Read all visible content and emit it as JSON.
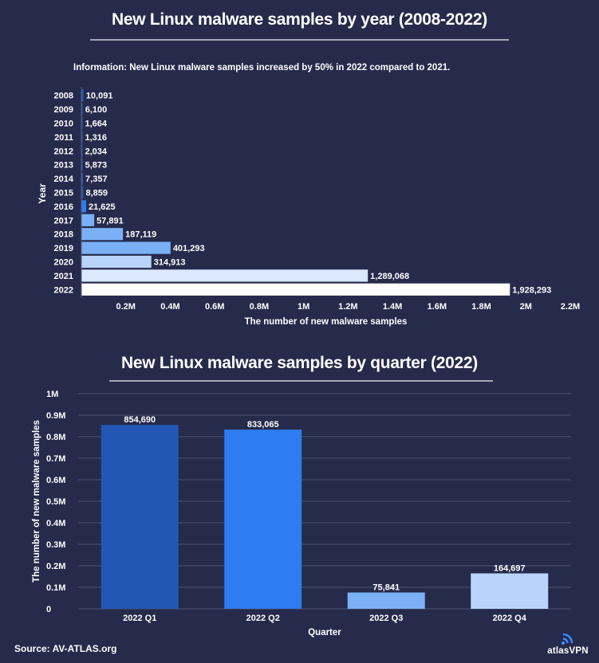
{
  "titles": {
    "chart1": "New Linux malware samples by year (2008-2022)",
    "chart2": "New Linux malware samples by quarter (2022)"
  },
  "info": "Information: New Linux malware samples increased by 50% in  2022 compared to 2021.",
  "source": "Source: AV-ATLAS.org",
  "brand": {
    "name": "atlasVPN",
    "icon": "wifi-signal-icon"
  },
  "colors": {
    "background": "#262a4b",
    "bar_dark": "#2257b5",
    "bar_blue": "#2f7bf0",
    "bar_mid": "#7ab0f6",
    "bar_light": "#b9d4fb",
    "bar_white": "#ffffff",
    "grid": "#4f5472"
  },
  "chart_data": [
    {
      "type": "bar",
      "orientation": "horizontal",
      "title": "New Linux malware samples by year (2008-2022)",
      "xlabel": "The number of new malware samples",
      "ylabel": "Year",
      "categories": [
        "2008",
        "2009",
        "2010",
        "2011",
        "2012",
        "2013",
        "2014",
        "2015",
        "2016",
        "2017",
        "2018",
        "2019",
        "2020",
        "2021",
        "2022"
      ],
      "values": [
        10091,
        6100,
        1664,
        1316,
        2034,
        5873,
        7357,
        8859,
        21625,
        57891,
        187119,
        401293,
        314913,
        1289068,
        1928293
      ],
      "value_labels": [
        "10,091",
        "6,100",
        "1,664",
        "1,316",
        "2,034",
        "5,873",
        "7,357",
        "8,859",
        "21,625",
        "57,891",
        "187,119",
        "401,293",
        "314,913",
        "1,289,068",
        "1,928,293"
      ],
      "bar_colors": [
        "#2257b5",
        "#2257b5",
        "#2257b5",
        "#2257b5",
        "#2257b5",
        "#2257b5",
        "#2257b5",
        "#2257b5",
        "#2f7bf0",
        "#7ab0f6",
        "#7ab0f6",
        "#7ab0f6",
        "#b9d4fb",
        "#dbe8fd",
        "#ffffff"
      ],
      "xlim": [
        0,
        2200000
      ],
      "xticks": [
        200000,
        400000,
        600000,
        800000,
        1000000,
        1200000,
        1400000,
        1600000,
        1800000,
        2000000,
        2200000
      ],
      "xtick_labels": [
        "0.2M",
        "0.4M",
        "0.6M",
        "0.8M",
        "1M",
        "1.2M",
        "1.4M",
        "1.6M",
        "1.8M",
        "2M",
        "2.2M"
      ],
      "grid": false
    },
    {
      "type": "bar",
      "orientation": "vertical",
      "title": "New Linux malware samples by quarter (2022)",
      "xlabel": "Quarter",
      "ylabel": "The number of new malware samples",
      "categories": [
        "2022 Q1",
        "2022 Q2",
        "2022 Q3",
        "2022 Q4"
      ],
      "values": [
        854690,
        833065,
        75841,
        164697
      ],
      "value_labels": [
        "854,690",
        "833,065",
        "75,841",
        "164,697"
      ],
      "bar_colors": [
        "#2257b5",
        "#2f7bf0",
        "#7ab0f6",
        "#b9d4fb"
      ],
      "ylim": [
        0,
        1000000
      ],
      "yticks": [
        0,
        100000,
        200000,
        300000,
        400000,
        500000,
        600000,
        700000,
        800000,
        900000,
        1000000
      ],
      "ytick_labels": [
        "0",
        "0.1M",
        "0.2M",
        "0.3M",
        "0.4M",
        "0.5M",
        "0.6M",
        "0.7M",
        "0.8M",
        "0.9M",
        "1M"
      ],
      "grid": true
    }
  ]
}
